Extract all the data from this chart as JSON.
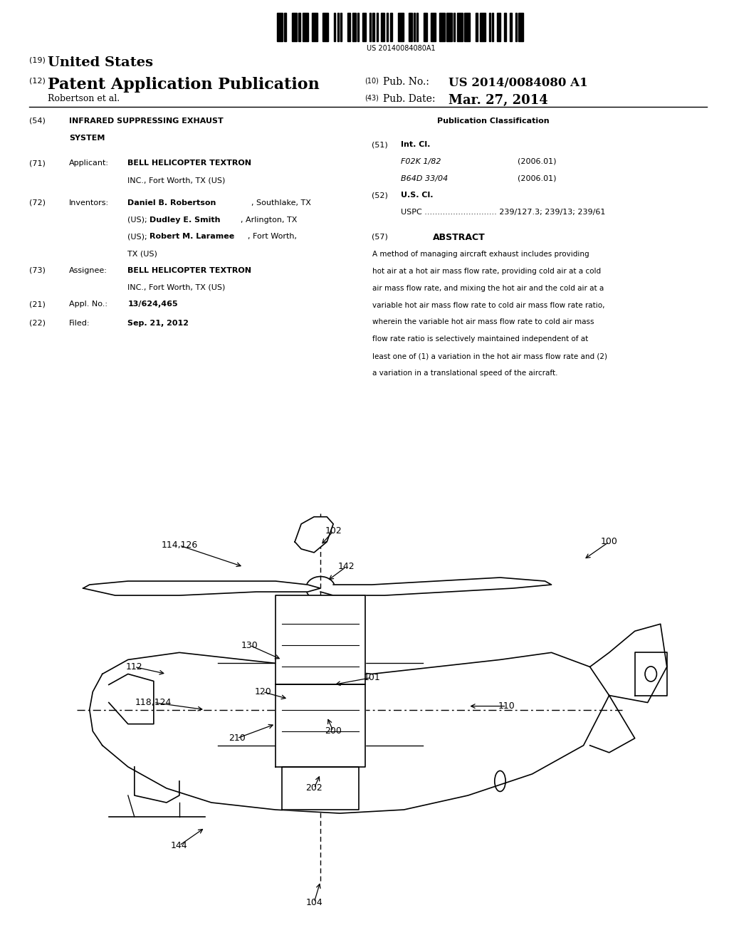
{
  "background_color": "#ffffff",
  "barcode_text": "US 20140084080A1",
  "header_line1_num": "(19)",
  "header_line1_text": "United States",
  "header_line2_num": "(12)",
  "header_line2_text": "Patent Application Publication",
  "header_right1_num": "(10)",
  "header_right1_label": "Pub. No.:",
  "header_right1_value": "US 2014/0084080 A1",
  "header_line3_author": "Robertson et al.",
  "header_right2_num": "(43)",
  "header_right2_label": "Pub. Date:",
  "header_right2_value": "Mar. 27, 2014",
  "field54_num": "(54)",
  "pub_class_label": "Publication Classification",
  "field71_num": "(71)",
  "field71_label": "Applicant:",
  "field51_num": "(51)",
  "field51_label": "Int. Cl.",
  "field51_a": "F02K 1/82",
  "field51_a_date": "(2006.01)",
  "field51_b": "B64D 33/04",
  "field51_b_date": "(2006.01)",
  "field72_num": "(72)",
  "field72_label": "Inventors:",
  "field52_num": "(52)",
  "field52_label": "U.S. Cl.",
  "field52_value": "USPC ............................ 239/127.3; 239/13; 239/61",
  "field73_num": "(73)",
  "field73_label": "Assignee:",
  "field57_num": "(57)",
  "field57_label": "ABSTRACT",
  "field57_value": "A method of managing aircraft exhaust includes providing\nhot air at a hot air mass flow rate, providing cold air at a cold\nair mass flow rate, and mixing the hot air and the cold air at a\nvariable hot air mass flow rate to cold air mass flow rate ratio,\nwherein the variable hot air mass flow rate to cold air mass\nflow rate ratio is selectively maintained independent of at\nleast one of (1) a variation in the hot air mass flow rate and (2)\na variation in a translational speed of the aircraft.",
  "field21_num": "(21)",
  "field21_label": "Appl. No.:",
  "field21_value": "13/624,465",
  "field22_num": "(22)",
  "field22_label": "Filed:",
  "field22_value": "Sep. 21, 2012"
}
